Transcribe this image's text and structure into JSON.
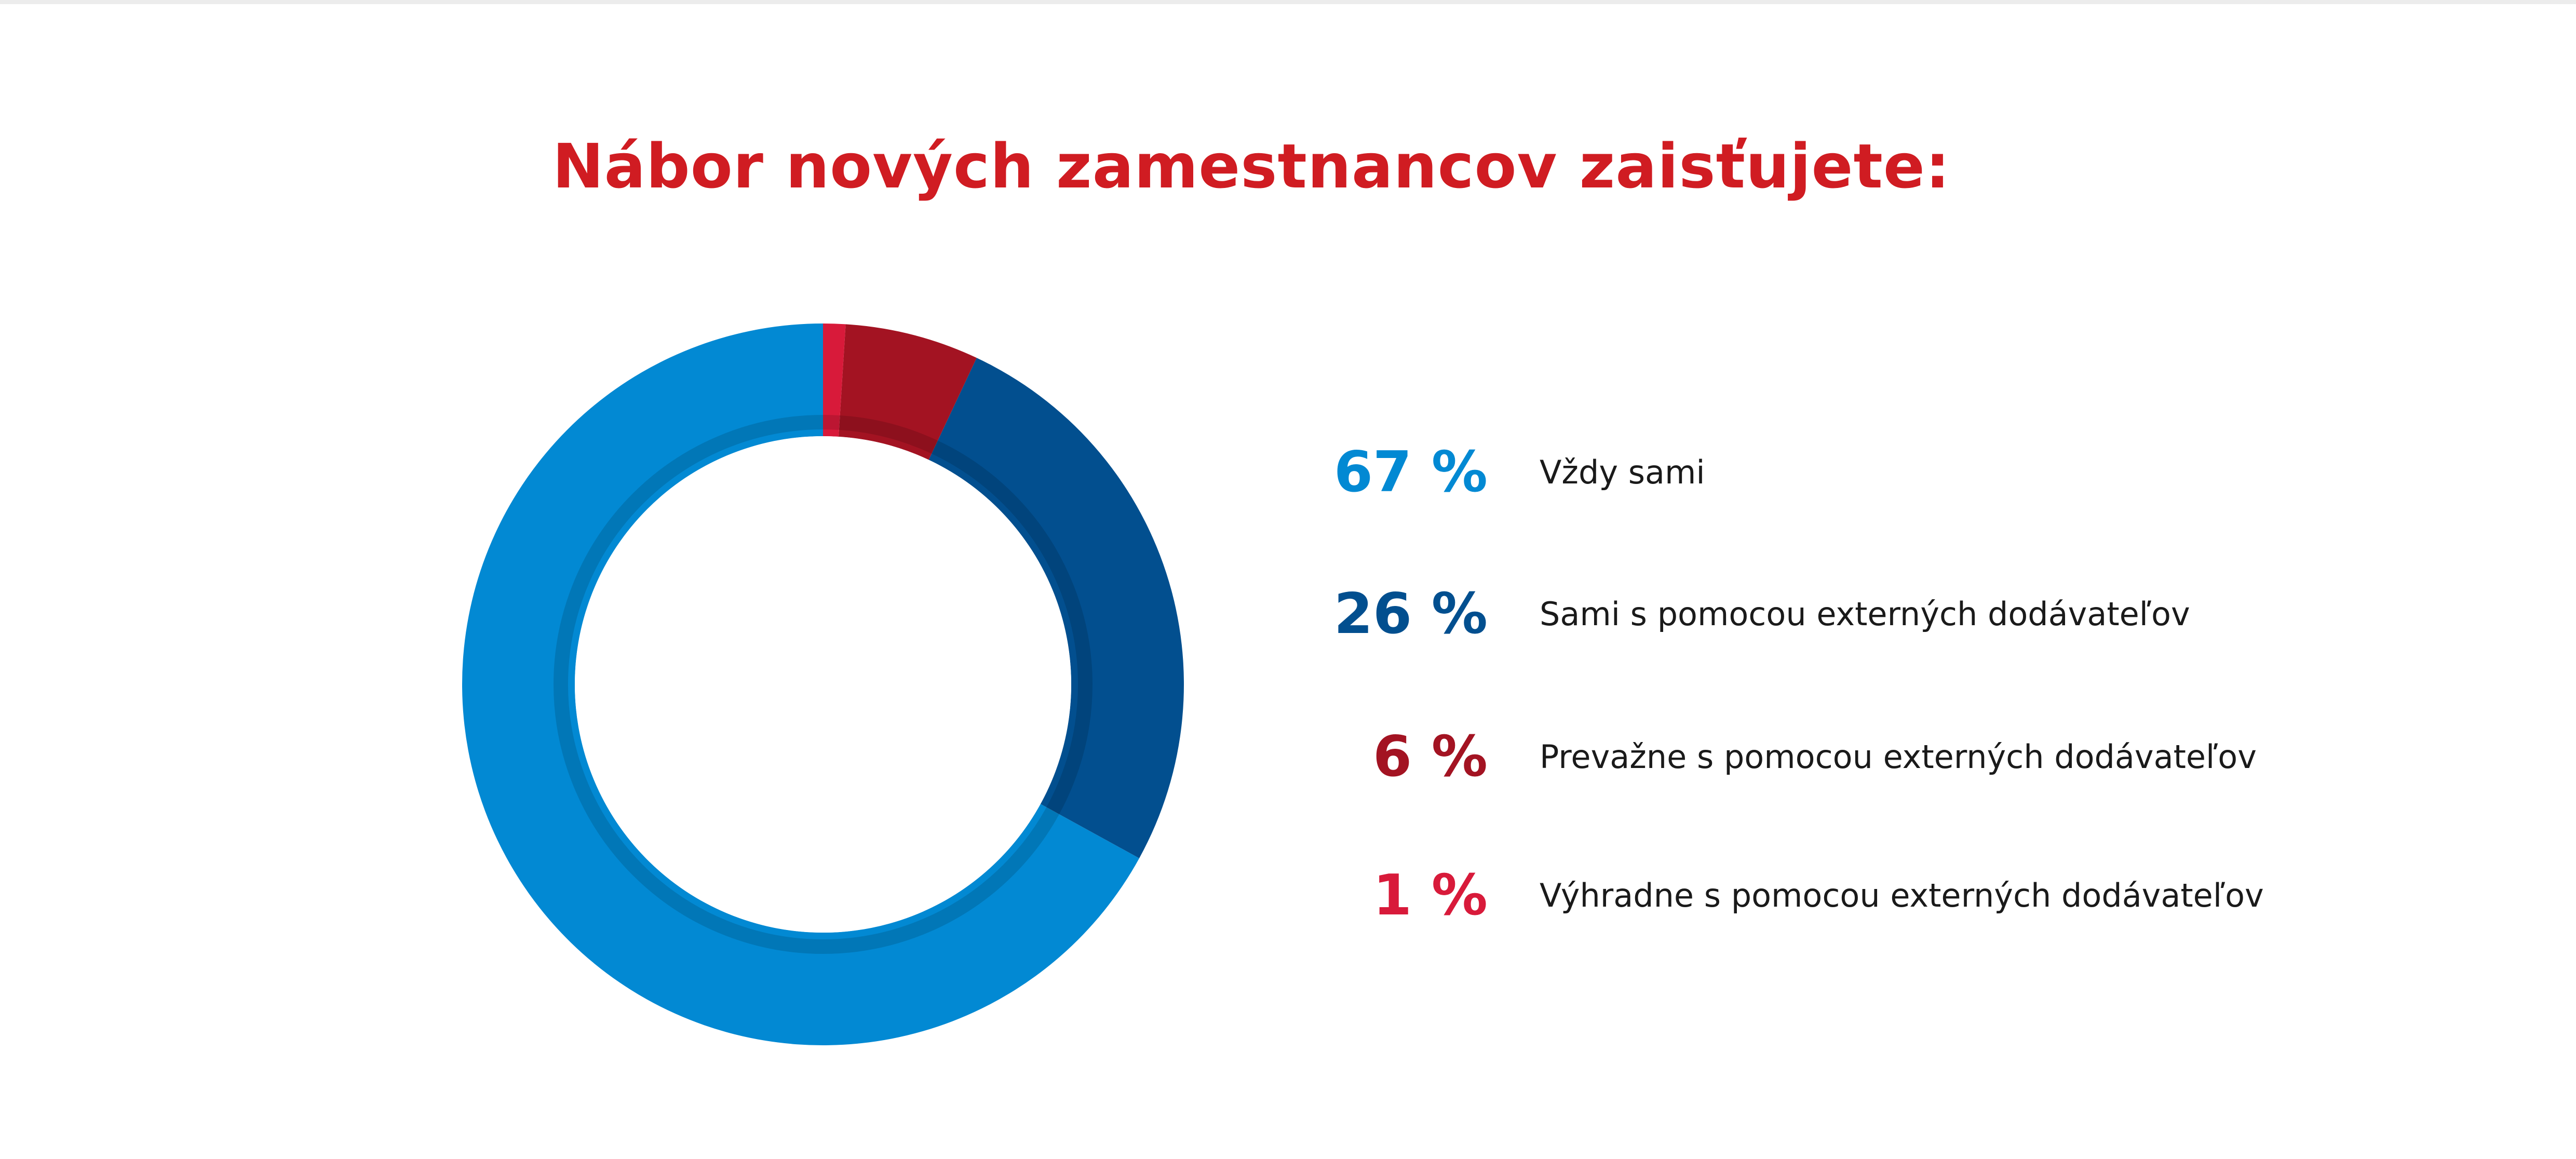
{
  "chart_data": {
    "type": "pie",
    "style": "donut",
    "title": "Nábor nových zamestnancov zaisťujete:",
    "title_color": "#d01c22",
    "legend_position": "right",
    "series": [
      {
        "name": "Vždy sami",
        "value": 67,
        "label": "67 %",
        "color": "#0289d3"
      },
      {
        "name": "Sami s pomocou externých dodávateľov",
        "value": 26,
        "label": "26 %",
        "color": "#024f8f"
      },
      {
        "name": "Prevažne s pomocou externých dodávateľov",
        "value": 6,
        "label": "6 %",
        "color": "#a31322"
      },
      {
        "name": "Výhradne s pomocou externých dodávateľov",
        "value": 1,
        "label": "1 %",
        "color": "#d81a3a"
      }
    ]
  }
}
